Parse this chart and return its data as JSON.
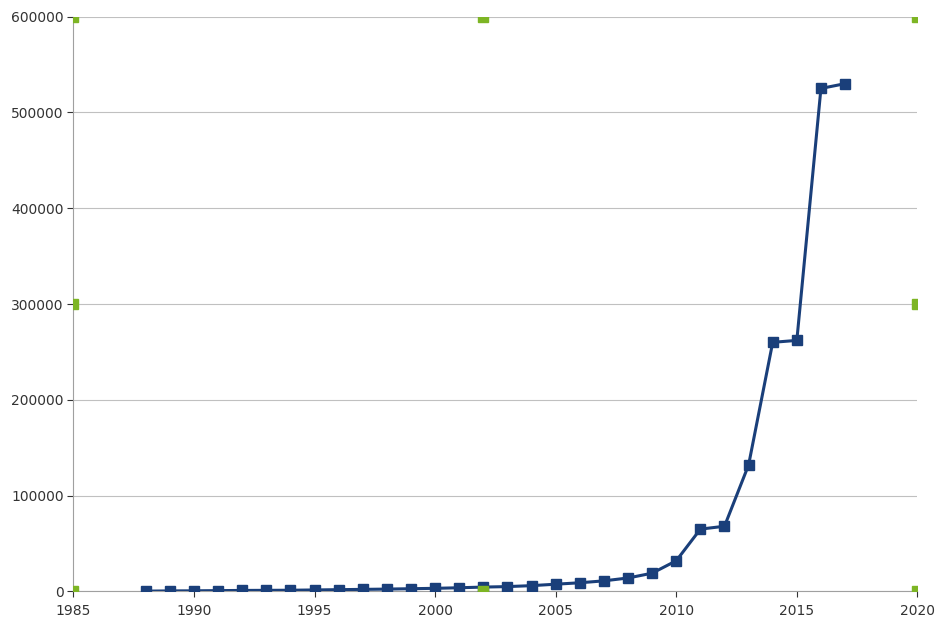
{
  "years": [
    1988,
    1989,
    1990,
    1991,
    1992,
    1993,
    1994,
    1995,
    1996,
    1997,
    1998,
    1999,
    2000,
    2001,
    2002,
    2003,
    2004,
    2005,
    2006,
    2007,
    2008,
    2009,
    2010,
    2011,
    2012,
    2013,
    2014,
    2015,
    2016,
    2017
  ],
  "transistors": [
    275,
    500,
    600,
    800,
    1000,
    1100,
    1200,
    1500,
    1800,
    2100,
    2400,
    2800,
    3200,
    3800,
    4500,
    5000,
    6000,
    7500,
    9000,
    11000,
    14000,
    19000,
    32000,
    65000,
    68000,
    132000,
    260000,
    262000,
    525000,
    530000
  ],
  "line_color": "#1a3f7a",
  "marker_color": "#1a3f7a",
  "green_marker_positions": [
    [
      1985,
      0
    ],
    [
      2002,
      0
    ],
    [
      2020,
      0
    ],
    [
      1985,
      600000
    ],
    [
      2002,
      600000
    ],
    [
      2020,
      600000
    ],
    [
      1985,
      300000
    ],
    [
      2020,
      300000
    ]
  ],
  "green_color": "#7db524",
  "background_color": "#ffffff",
  "grid_color": "#c0c0c0",
  "xlim": [
    1985,
    2020
  ],
  "ylim": [
    0,
    600000
  ],
  "yticks": [
    0,
    100000,
    200000,
    300000,
    400000,
    500000,
    600000
  ],
  "xticks": [
    1985,
    1990,
    1995,
    2000,
    2005,
    2010,
    2015,
    2020
  ]
}
